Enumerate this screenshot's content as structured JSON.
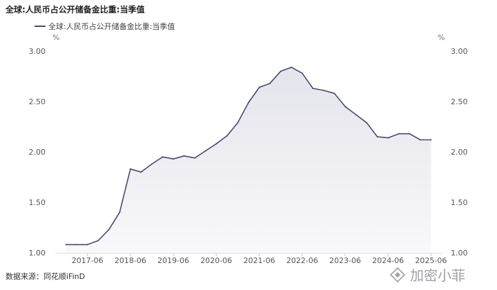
{
  "chart_data": {
    "type": "area",
    "title": "全球:人民币占公开储备金比重:当季值",
    "legend": [
      "全球:人民币占公开储备金比重:当季值"
    ],
    "legend_position": "top-left",
    "y_unit_left": "%",
    "y_unit_right": "%",
    "ylim": [
      1.0,
      3.0
    ],
    "y_ticks": [
      "1.00",
      "1.50",
      "2.00",
      "2.50",
      "3.00"
    ],
    "x_ticks": [
      "2017-06",
      "2018-06",
      "2019-06",
      "2020-06",
      "2021-06",
      "2022-06",
      "2023-06",
      "2024-06",
      "2025-06"
    ],
    "x_range": [
      "2016-09",
      "2025-09"
    ],
    "grid": false,
    "line_color": "#4a4a6a",
    "fill_color": "#e4e4ec",
    "series": [
      {
        "name": "全球:人民币占公开储备金比重:当季值",
        "x": [
          "2016-12",
          "2017-03",
          "2017-06",
          "2017-09",
          "2017-12",
          "2018-03",
          "2018-06",
          "2018-09",
          "2018-12",
          "2019-03",
          "2019-06",
          "2019-09",
          "2019-12",
          "2020-03",
          "2020-06",
          "2020-09",
          "2020-12",
          "2021-03",
          "2021-06",
          "2021-09",
          "2021-12",
          "2022-03",
          "2022-06",
          "2022-09",
          "2022-12",
          "2023-03",
          "2023-06",
          "2023-09",
          "2023-12",
          "2024-03",
          "2024-06",
          "2024-09",
          "2024-12",
          "2025-03",
          "2025-06"
        ],
        "values": [
          1.08,
          1.08,
          1.08,
          1.12,
          1.23,
          1.4,
          1.83,
          1.8,
          1.88,
          1.95,
          1.93,
          1.96,
          1.94,
          2.01,
          2.08,
          2.16,
          2.29,
          2.49,
          2.64,
          2.68,
          2.8,
          2.84,
          2.78,
          2.63,
          2.61,
          2.58,
          2.45,
          2.37,
          2.29,
          2.15,
          2.14,
          2.18,
          2.18,
          2.12,
          2.12
        ]
      }
    ]
  },
  "source_note": "数据来源：同花顺iFinD",
  "watermark": "加密小菲"
}
